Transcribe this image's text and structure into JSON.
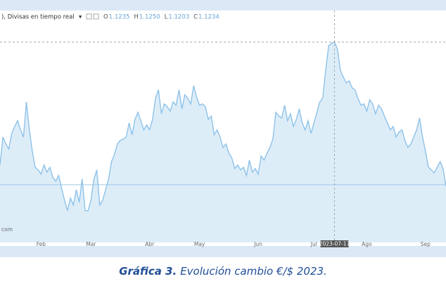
{
  "chart_data": {
    "type": "area",
    "header": {
      "name": "), Divisas en tiempo real",
      "ohlc": [
        {
          "key": "O",
          "value": "1.1235"
        },
        {
          "key": "H",
          "value": "1.1250"
        },
        {
          "key": "L",
          "value": "1.1203"
        },
        {
          "key": "C",
          "value": "1.1234"
        }
      ]
    },
    "watermark": "com",
    "values": [
      1.0724,
      1.0849,
      1.0818,
      1.0796,
      1.0865,
      1.0896,
      1.0922,
      1.0881,
      1.0849,
      1.1006,
      1.0881,
      1.0786,
      1.0714,
      1.0702,
      1.0683,
      1.0724,
      1.0692,
      1.0714,
      1.067,
      1.0651,
      1.0677,
      1.062,
      1.0567,
      1.052,
      1.0576,
      1.0545,
      1.0614,
      1.0557,
      1.0661,
      1.052,
      1.052,
      1.0567,
      1.0661,
      1.0702,
      1.0545,
      1.0567,
      1.0614,
      1.0661,
      1.0739,
      1.0771,
      1.0818,
      1.0834,
      1.084,
      1.0849,
      1.0912,
      1.0859,
      1.0928,
      1.0959,
      1.0922,
      1.0881,
      1.0903,
      1.0881,
      1.0928,
      1.1022,
      1.106,
      1.0953,
      1.0997,
      1.0984,
      1.0965,
      1.1006,
      1.0991,
      1.106,
      1.0975,
      1.1038,
      1.1022,
      1.0997,
      1.1078,
      1.1028,
      1.0991,
      1.0997,
      1.0984,
      1.0928,
      1.0943,
      1.0859,
      1.0881,
      1.0849,
      1.0802,
      1.0818,
      1.0777,
      1.0755,
      1.0708,
      1.0724,
      1.0702,
      1.0714,
      1.0677,
      1.0746,
      1.0692,
      1.0708,
      1.0683,
      1.0764,
      1.0746,
      1.0777,
      1.0802,
      1.084,
      1.0959,
      1.0943,
      1.0934,
      1.0991,
      1.0922,
      1.0953,
      1.0896,
      1.0928,
      1.0975,
      1.0912,
      1.0881,
      1.0922,
      1.0865,
      1.0912,
      1.0959,
      1.1006,
      1.1022,
      1.1148,
      1.1257,
      1.1267,
      1.1273,
      1.1242,
      1.1148,
      1.1116,
      1.1091,
      1.11,
      1.1069,
      1.106,
      1.1022,
      1.0991,
      1.0997,
      1.0965,
      1.1016,
      1.0997,
      1.0953,
      1.0991,
      1.0975,
      1.0943,
      1.0912,
      1.0881,
      1.0896,
      1.0849,
      1.0871,
      1.0881,
      1.0834,
      1.0802,
      1.0818,
      1.0849,
      1.0881,
      1.0934,
      1.0849,
      1.0786,
      1.0714,
      1.0702,
      1.0689,
      1.0714,
      1.0739,
      1.0708,
      1.0629
    ],
    "color": "#8ec2e9",
    "xlim": [
      0,
      152
    ],
    "xticks": [
      {
        "value": 14,
        "label": "Feb"
      },
      {
        "value": 31,
        "label": "Mar"
      },
      {
        "value": 51,
        "label": "Abr"
      },
      {
        "value": 68,
        "label": "May"
      },
      {
        "value": 88,
        "label": "Jun"
      },
      {
        "value": 107,
        "label": "Jul"
      },
      {
        "value": 125,
        "label": "Ago"
      },
      {
        "value": 145,
        "label": "Sep"
      }
    ],
    "ylim": [
      1.0378,
      1.1414
    ],
    "reference_line": 1.0636,
    "crosshair": {
      "value": 114,
      "label": "2023-07-17"
    },
    "caption": {
      "label": "Gráfica 3.",
      "text": "Evolución cambio €/$ 2023."
    }
  }
}
